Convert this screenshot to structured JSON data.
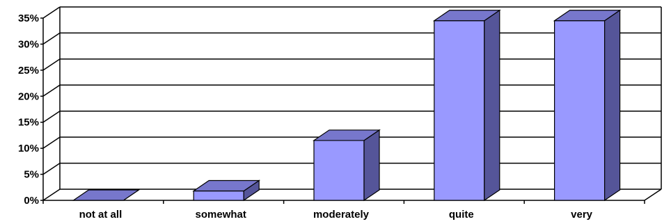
{
  "chart_data": {
    "type": "bar",
    "style": "3d-column",
    "categories": [
      "not at all",
      "somewhat",
      "moderately",
      "quite",
      "very"
    ],
    "values": [
      0,
      1.8,
      11.5,
      34.5,
      34.5
    ],
    "yticks": [
      "0%",
      "5%",
      "10%",
      "15%",
      "20%",
      "25%",
      "30%",
      "35%"
    ],
    "ylim": [
      0,
      35
    ],
    "grid": true,
    "legend": "none",
    "colors": {
      "front": "#9999ff",
      "top": "#7777cc",
      "side": "#555599",
      "outline": "#000000",
      "gridline": "#000000"
    }
  }
}
